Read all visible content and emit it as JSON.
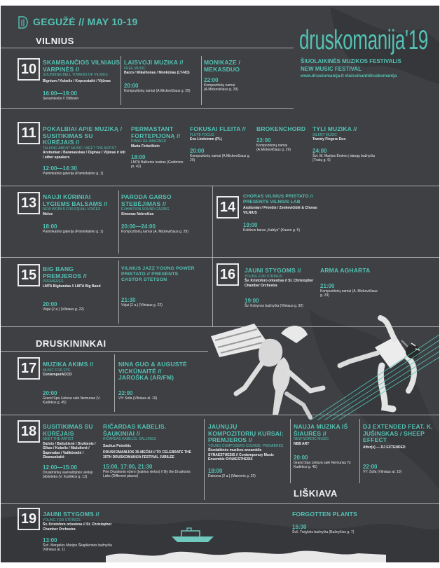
{
  "header": {
    "date": "GEGUŽĖ // MAY 10-19",
    "brand": "druskomanija'19",
    "subtitle_lt": "ŠIUOLAIKINĖS MUZIKOS FESTIVALIS",
    "subtitle_en": "NEW MUSIC FESTIVAL",
    "links": "www.druskomanija.lt #laisvinantidruskomanija"
  },
  "cities": {
    "vilnius": "VILNIUS",
    "druskininkai": "DRUSKININKAI",
    "liskiava": "LIŠKIAVA"
  },
  "days": {
    "d10": {
      "num": "10",
      "e1": {
        "title": "SKAMBANČIOS VILNIAUS VARPINĖS //",
        "sub": "SOUNDING BELL TOWERS OF VILNIUS",
        "perf": "Bignium / Kobelis / Kopcostaitė / Vijūnas",
        "time": "16:00—19:00",
        "venue": "Senamiestis // Oldtown"
      },
      "e2": {
        "title": "LAISVOJI MUZIKA //",
        "sub": "FREE MUSIC",
        "perf": "Barzo / Mikalhonas / Monkūnas (LT-NO)",
        "time": "20:00",
        "venue": "Kompozitorių namai (A.Mickevičiaus g. 29)"
      },
      "e3": {
        "title": "MONIKAZE / MEKASDUo",
        "time": "22:00",
        "venue": "Kompozitorių namai (A.Mickevičiaus g. 29)"
      }
    },
    "d11": {
      "num": "11",
      "e1": {
        "title": "POKALBIAI APIE MUZIKĄ / SUSITIKIMAS SU KŪRĖJAIS //",
        "sub": "TALKING ABOUT MUSIC / MEET THE ARTIST",
        "perf": "Arutiunian / Baranauskas / Diginas / Vijūnas ir kiti / other speakers",
        "time": "12:00—14:30",
        "venue": "Paminkalnio galerija (Paminkalnio g. 1)"
      },
      "e2": {
        "title": "PERMASTANT FORTEPIJONĄ //",
        "sub": "PIANO RE-IMAGINED",
        "perf": "Marta Finkelštein",
        "time": "18:00",
        "venue": "LMTA Balkonio teatras (Gedimino pr. 42)"
      },
      "e3": {
        "title": "FOKUSAI FLEITA //",
        "sub": "FLUTE FOCUS",
        "perf": "Eva Lindstrøm (PL)",
        "time": "20:00",
        "venue": "Kompozitorių namai (A.Mickevičiaus g. 29)"
      },
      "e4": {
        "title": "BROKENCHORD",
        "time": "22:00",
        "venue": "Kompozitorių namai (A.Mickevičiaus g. 29)"
      },
      "e5": {
        "title": "TYLI MUZIKA //",
        "sub": "SILENT MUSIC",
        "perf": "Twenty Fingers Duo",
        "time": "24:00",
        "venue": "Švt. M. Marijos Ėmimo į dangų bažnyčia (Trakų g. 9)"
      }
    },
    "d13": {
      "num": "13",
      "e1": {
        "title": "NAUJI KŪRINIAI LYGIEMS BALSAMS //",
        "sub": "NEW WORKS FOR EQUAL VOICES",
        "perf": "Melos",
        "time": "18:00",
        "venue": "Paminkalnio galerija (Paminkalnio g. 1)"
      },
      "e2": {
        "title": "Paroda GARSO STEBĖJIMAS //",
        "sub": "Exhibition SOUND GAZING",
        "perf": "Simonas Nekrošius",
        "time": "20:00—24:00",
        "venue": "Kompozitorių namai (A. Mickevičiaus g. 29)"
      }
    },
    "d14": {
      "num": "14",
      "e1": {
        "title": "Choras VILNIUS pristato // presents VILNIUS LAB",
        "perf": "Arutiunian / Prendis / Zenkevičiūtė & Choras VILNIUS",
        "time": "19:00",
        "venue": "Kultūros baras „Kablys\" (Kauno g. 5)"
      }
    },
    "d15": {
      "num": "15",
      "e1": {
        "title": "BIG BANG PREMJEROS //",
        "sub": "PREMIERES",
        "perf": "LMTA Bigbandas // LMTA Big Band",
        "time": "20:00",
        "venue": "Vėjai (2 a.) (Vilniaus g. 22)"
      },
      "e2": {
        "title": "Vilnius Jazz Young Power pristato // presents CASTOR STETSON",
        "time": "21:30",
        "venue": "Vėjai (2 a.) (Vilniaus g. 22)"
      }
    },
    "d16": {
      "num": "16",
      "e1": {
        "title": "JAUNI STYGOMS //",
        "sub": "YOUNG FOR STRINGS",
        "perf": "Šv. Kristoforo orkestras // St. Christopher Chamber Orchestra",
        "time": "19:00",
        "venue": "Šv. Kotrynos bažnyčia (Vilniaus g. 30)"
      },
      "e2": {
        "title": "ARMA AGHARTA",
        "time": "21:00",
        "venue": "Kompozitorių namai (A. Mickevičiaus g. 29)"
      }
    },
    "d17": {
      "num": "17",
      "e1": {
        "title": "MUZIKA AKIMS //",
        "sub": "MUSIC FOR EYE",
        "perf": "ContemporACCO",
        "time": "20:00",
        "venue": "Grand Spa Lietuva salė Nemunas (V. Kudirkos g. 45)"
      },
      "e2": {
        "title": "NINA GUO & AUGUSTĖ VICKŪNAITĖ // JAROŠKA (AR/FM)",
        "time": "22:00",
        "venue": "VY: Sofa (Vilniaus al. 10)"
      }
    },
    "d18": {
      "num": "18",
      "e1": {
        "title": "SUSITIKIMAS SU KŪRĖJAIS",
        "sub": "MEET THE ARTIST",
        "perf": "Dažnis / Baltušienė / Druktenis / Gikas / Kobelis / Mažulienė / Šapovalas / Vaitkūnaitė / Zbarauskaitė",
        "time": "12:00—15:00",
        "venue": "Druskininkų savivaldybės viešoji biblioteka (V. Kudirkos g. 13)"
      },
      "e2": {
        "title": "Ričardas Kabelis. ŠAUKINIAI //",
        "sub": "Ričardas Kabelis. CALLINGS",
        "perf": "Saulius Petreikis",
        "extra": "DRUSKOMANIJOS 35-MEČIUI // TO CELEBRATE THE 35TH DRUSKOMANIJA FESTIVAL JUBILEE",
        "time": "15:00, 17:00, 21:30",
        "venue": "Prie Druskonio ežero (įvairios vietos) // By the Druskonis Lake (Different places)"
      },
      "e3": {
        "title": "JAUNŲJŲ KOMPOZITORIŲ KURSAI: PREMJEROS //",
        "sub": "YOUNG COMPOSERS COURSE: PREMIERES",
        "perf": "Šiuolaikinės muzikos ansamblis SYNAESTHESIS // Contemporary Music Ensemble SYNAESTHESIS",
        "time": "18:00",
        "venue": "Dainava (2 a.) (Maironio g. 22)"
      },
      "e4": {
        "title": "NAUJA MUZIKA IŠ ŠIAURĖS //",
        "sub": "NEW NORDIC MUSIC",
        "perf": "NBB ART",
        "time": "20:00",
        "venue": "Grand Spa Lietuva salė Nemunas (V. Kudirkos g. 45)"
      },
      "e5": {
        "title": "DJ EXTENDED FEAT. K. JUŠINSKAS / SHEEP EFFECT",
        "perf": "After(s) — DJ EXTENDED",
        "time": "22:00",
        "venue": "VY: Sofa (Vilniaus al. 10)"
      }
    },
    "d19": {
      "num": "19",
      "e1": {
        "title": "JAUNI STYGOMS //",
        "sub": "YOUNG FOR STRINGS",
        "perf": "Šv. Kristoforo orkestras // St. Christopher Chamber Orchestra",
        "time": "13:00",
        "venue": "Švč. Mergelės Marijos Škaplierinės bažnyčia (Vilniaus al. 1)"
      },
      "e2": {
        "title": "FORGOTTEN PLANTS",
        "time": "15:30",
        "venue": "Švč. Trejybės bažnyčia (Bažnyčios g. 7)"
      }
    }
  }
}
